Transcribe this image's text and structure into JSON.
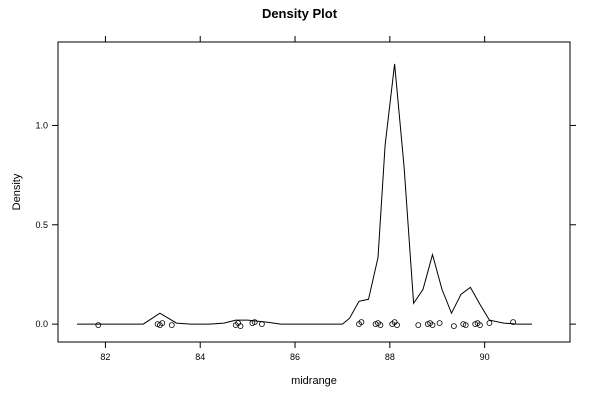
{
  "chart_data": {
    "type": "line",
    "title": "Density Plot",
    "xlabel": "midrange",
    "ylabel": "Density",
    "xlim": [
      81.0,
      91.8
    ],
    "ylim": [
      -0.09,
      1.42
    ],
    "x_ticks": [
      82,
      84,
      86,
      88,
      90
    ],
    "x_tick_labels": [
      "82",
      "84",
      "86",
      "88",
      "90"
    ],
    "y_ticks": [
      0.0,
      0.5,
      1.0
    ],
    "y_tick_labels": [
      "0.0",
      "0.5",
      "1.0"
    ],
    "grid": false,
    "series": [
      {
        "kind": "density-line",
        "x": [
          81.4,
          81.85,
          82.2,
          82.5,
          82.8,
          83.15,
          83.5,
          83.8,
          84.2,
          84.5,
          84.75,
          85.0,
          85.2,
          85.4,
          85.7,
          86.0,
          86.5,
          87.0,
          87.15,
          87.35,
          87.55,
          87.75,
          87.9,
          88.1,
          88.3,
          88.5,
          88.7,
          88.9,
          89.1,
          89.3,
          89.5,
          89.7,
          89.9,
          90.1,
          90.4,
          90.7,
          91.0
        ],
        "y": [
          0.0,
          0.0,
          0.0,
          0.0,
          0.0,
          0.055,
          0.005,
          0.0,
          0.0,
          0.005,
          0.02,
          0.02,
          0.015,
          0.01,
          0.0,
          0.0,
          0.0,
          0.0,
          0.03,
          0.115,
          0.125,
          0.335,
          0.9,
          1.31,
          0.79,
          0.105,
          0.175,
          0.35,
          0.175,
          0.055,
          0.15,
          0.185,
          0.1,
          0.02,
          0.005,
          0.0,
          0.0
        ]
      },
      {
        "kind": "rug-points",
        "x": [
          81.85,
          83.1,
          83.15,
          83.2,
          83.4,
          84.75,
          84.8,
          84.85,
          85.1,
          85.15,
          85.3,
          87.35,
          87.4,
          87.7,
          87.75,
          87.8,
          88.05,
          88.1,
          88.15,
          88.6,
          88.8,
          88.85,
          88.9,
          89.05,
          89.35,
          89.55,
          89.6,
          89.8,
          89.85,
          89.9,
          90.1,
          90.6
        ],
        "y": [
          -0.005,
          0.0,
          -0.005,
          0.005,
          -0.005,
          -0.005,
          0.005,
          -0.01,
          0.005,
          0.01,
          0.0,
          0.0,
          0.01,
          0.0,
          0.005,
          -0.005,
          0.0,
          0.01,
          -0.005,
          -0.005,
          0.0,
          0.005,
          -0.005,
          0.005,
          -0.01,
          0.0,
          -0.005,
          0.0,
          0.005,
          -0.005,
          0.005,
          0.01
        ]
      }
    ]
  }
}
